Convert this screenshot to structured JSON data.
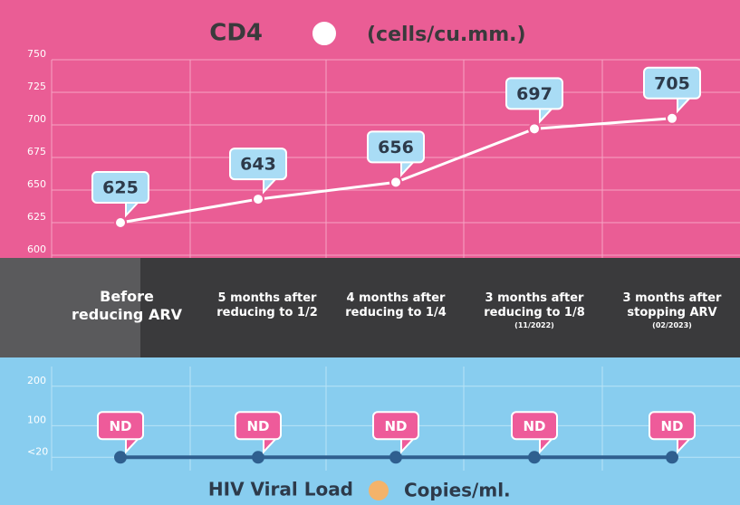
{
  "chart_data": [
    {
      "type": "line",
      "title": "CD4",
      "subtitle": "(cells/cu.mm.)",
      "categories": [
        "Before reducing ARV",
        "5 months after reducing to 1/2",
        "4 months after reducing to 1/4",
        "3 months after reducing to 1/8",
        "3 months after stopping ARV"
      ],
      "category_notes": [
        null,
        null,
        null,
        "(11/2022)",
        "(02/2023)"
      ],
      "values": [
        625,
        643,
        656,
        697,
        705
      ],
      "color": "#ffffff",
      "ylim": [
        600,
        750
      ],
      "yticks": [
        600,
        625,
        650,
        675,
        700,
        725,
        750
      ],
      "grid": true
    },
    {
      "type": "line",
      "title": "HIV Viral Load",
      "subtitle": "Copies/ml.",
      "values": [
        20,
        20,
        20,
        20,
        20
      ],
      "value_labels": [
        "ND",
        "ND",
        "ND",
        "ND",
        "ND"
      ],
      "color": "#2f5f8f",
      "ylim": [
        0,
        250
      ],
      "yticks": [
        {
          "value": 20,
          "label": "<20"
        },
        100,
        200
      ],
      "grid": true
    }
  ]
}
